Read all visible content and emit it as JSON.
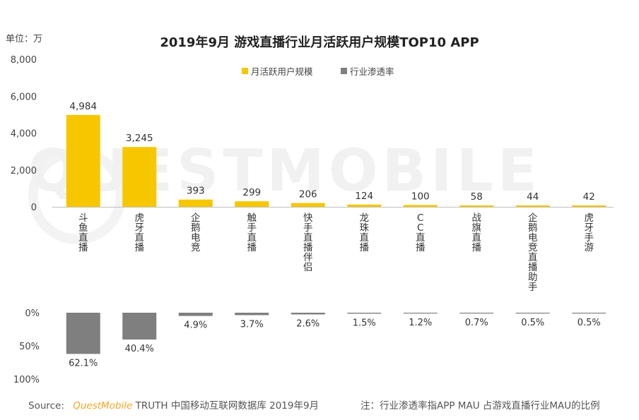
{
  "unit_label": "单位：万",
  "chart_data": {
    "type": "bar",
    "title": "2019年9月 游戏直播行业月活跃用户规模TOP10 APP",
    "categories": [
      "斗鱼直播",
      "虎牙直播",
      "企鹅电竞",
      "触手直播",
      "快手直播伴侣",
      "龙珠直播",
      "CC直播",
      "战旗直播",
      "企鹅电竞直播助手",
      "虎牙手游"
    ],
    "series": [
      {
        "name": "月活跃用户规模",
        "values": [
          4984,
          3245,
          393,
          299,
          206,
          124,
          100,
          58,
          44,
          42
        ],
        "labels": [
          "4,984",
          "3,245",
          "393",
          "299",
          "206",
          "124",
          "100",
          "58",
          "44",
          "42"
        ],
        "color": "#f6c700",
        "axis": "top",
        "ylim": [
          0,
          8000
        ],
        "ticks": [
          "8,000",
          "6,000",
          "4,000",
          "2,000",
          "0"
        ]
      },
      {
        "name": "行业渗透率",
        "values": [
          62.1,
          40.4,
          4.9,
          3.7,
          2.6,
          1.5,
          1.2,
          0.7,
          0.5,
          0.5
        ],
        "labels": [
          "62.1%",
          "40.4%",
          "4.9%",
          "3.7%",
          "2.6%",
          "1.5%",
          "1.2%",
          "0.7%",
          "0.5%",
          "0.5%"
        ],
        "color": "#7f7f7f",
        "axis": "bottom-inverted",
        "ylim": [
          0,
          100
        ],
        "ticks": [
          "0%",
          "50%",
          "100%"
        ]
      }
    ],
    "legend_position": "top-center",
    "grid": false
  },
  "watermark": "QUESTMOBILE",
  "footer": {
    "source_prefix": "Source:",
    "source_brand": "QuestMobile",
    "source_rest": "TRUTH 中国移动互联网数据库 2019年9月",
    "note": "注：行业渗透率指APP MAU 占游戏直播行业MAU的比例"
  }
}
